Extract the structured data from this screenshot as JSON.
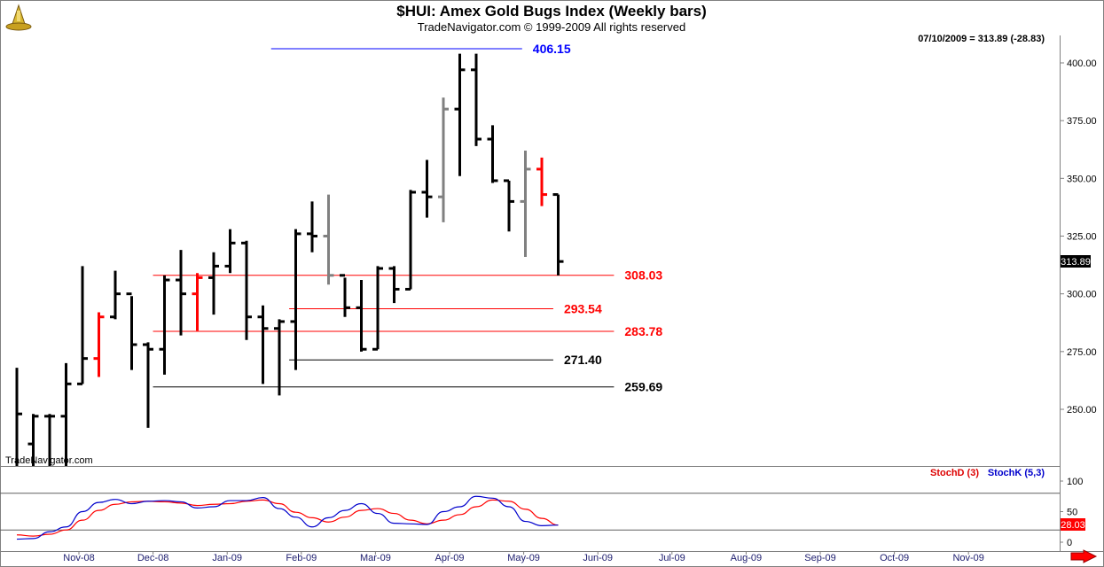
{
  "chart_data": {
    "type": "ohlc",
    "title": "$HUI:  Amex Gold Bugs Index  (Weekly bars)",
    "subtitle": "TradeNavigator.com © 1999-2009 All rights reserved",
    "header_readout": "07/10/2009 = 313.89 (-28.83)",
    "watermark": "TradeNavigator.com",
    "last_price": "313.89",
    "y_ticks": [
      "250.00",
      "275.00",
      "300.00",
      "325.00",
      "350.00",
      "375.00",
      "400.00"
    ],
    "ylim": [
      227,
      413
    ],
    "x_ticks": [
      "Nov-08",
      "Dec-08",
      "Jan-09",
      "Feb-09",
      "Mar-09",
      "Apr-09",
      "May-09",
      "Jun-09",
      "Jul-09",
      "Aug-09",
      "Sep-09",
      "Oct-09",
      "Nov-09"
    ],
    "bar_colors": {
      "normal": "#000000",
      "gray": "#808080",
      "red": "#ff0000"
    },
    "bars": [
      {
        "o": 221,
        "h": 268,
        "l": 218,
        "c": 248,
        "color": "normal"
      },
      {
        "o": 235,
        "h": 248,
        "l": 222,
        "c": 247,
        "color": "normal"
      },
      {
        "o": 247,
        "h": 248,
        "l": 222,
        "c": 247,
        "color": "normal"
      },
      {
        "o": 247,
        "h": 270,
        "l": 222,
        "c": 261,
        "color": "normal"
      },
      {
        "o": 261,
        "h": 312,
        "l": 261,
        "c": 272,
        "color": "normal"
      },
      {
        "o": 272,
        "h": 292,
        "l": 264,
        "c": 290,
        "color": "red"
      },
      {
        "o": 290,
        "h": 310,
        "l": 289,
        "c": 300,
        "color": "normal"
      },
      {
        "o": 300,
        "h": 299,
        "l": 267,
        "c": 278,
        "color": "normal"
      },
      {
        "o": 278,
        "h": 279,
        "l": 242,
        "c": 276,
        "color": "normal"
      },
      {
        "o": 276,
        "h": 308,
        "l": 265,
        "c": 306,
        "color": "normal"
      },
      {
        "o": 306,
        "h": 319,
        "l": 282,
        "c": 300,
        "color": "normal"
      },
      {
        "o": 300,
        "h": 309,
        "l": 284,
        "c": 307,
        "color": "red"
      },
      {
        "o": 307,
        "h": 318,
        "l": 291,
        "c": 312,
        "color": "normal"
      },
      {
        "o": 312,
        "h": 328,
        "l": 309,
        "c": 322,
        "color": "normal"
      },
      {
        "o": 322,
        "h": 323,
        "l": 280,
        "c": 290,
        "color": "normal"
      },
      {
        "o": 290,
        "h": 295,
        "l": 261,
        "c": 285,
        "color": "normal"
      },
      {
        "o": 285,
        "h": 289,
        "l": 256,
        "c": 288,
        "color": "normal"
      },
      {
        "o": 288,
        "h": 328,
        "l": 267,
        "c": 326,
        "color": "normal"
      },
      {
        "o": 326,
        "h": 340,
        "l": 318,
        "c": 325,
        "color": "normal"
      },
      {
        "o": 325,
        "h": 343,
        "l": 304,
        "c": 308,
        "color": "gray"
      },
      {
        "o": 308,
        "h": 307,
        "l": 290,
        "c": 294,
        "color": "normal"
      },
      {
        "o": 294,
        "h": 306,
        "l": 275,
        "c": 276,
        "color": "normal"
      },
      {
        "o": 276,
        "h": 312,
        "l": 276,
        "c": 311,
        "color": "normal"
      },
      {
        "o": 311,
        "h": 312,
        "l": 296,
        "c": 302,
        "color": "normal"
      },
      {
        "o": 302,
        "h": 345,
        "l": 302,
        "c": 344,
        "color": "normal"
      },
      {
        "o": 344,
        "h": 358,
        "l": 333,
        "c": 342,
        "color": "normal"
      },
      {
        "o": 342,
        "h": 385,
        "l": 331,
        "c": 380,
        "color": "gray"
      },
      {
        "o": 380,
        "h": 404,
        "l": 351,
        "c": 397,
        "color": "normal"
      },
      {
        "o": 397,
        "h": 404,
        "l": 364,
        "c": 367,
        "color": "normal"
      },
      {
        "o": 367,
        "h": 373,
        "l": 348,
        "c": 349,
        "color": "normal"
      },
      {
        "o": 349,
        "h": 349,
        "l": 327,
        "c": 340,
        "color": "normal"
      },
      {
        "o": 340,
        "h": 362,
        "l": 316,
        "c": 354,
        "color": "gray"
      },
      {
        "o": 354,
        "h": 359,
        "l": 338,
        "c": 343,
        "color": "red"
      },
      {
        "o": 343,
        "h": 343,
        "l": 308,
        "c": 314,
        "color": "normal"
      }
    ],
    "levels": [
      {
        "label": "406.15",
        "value": 406.15,
        "color": "#0000ff",
        "label_color": "#0000ff",
        "x_start_bar": 15.5,
        "x_end_bar": 30.8
      },
      {
        "label": "308.03",
        "value": 308.03,
        "color": "#ff0000",
        "label_color": "#ff0000",
        "x_start_bar": 8.3,
        "x_end_bar": 36.4
      },
      {
        "label": "293.54",
        "value": 293.54,
        "color": "#ff0000",
        "label_color": "#ff0000",
        "x_start_bar": 16.6,
        "x_end_bar": 32.7
      },
      {
        "label": "283.78",
        "value": 283.78,
        "color": "#ff0000",
        "label_color": "#ff0000",
        "x_start_bar": 8.3,
        "x_end_bar": 36.4
      },
      {
        "label": "271.40",
        "value": 271.4,
        "color": "#000000",
        "label_color": "#000000",
        "x_start_bar": 16.6,
        "x_end_bar": 32.7
      },
      {
        "label": "259.69",
        "value": 259.69,
        "color": "#000000",
        "label_color": "#000000",
        "x_start_bar": 8.3,
        "x_end_bar": 36.4
      }
    ],
    "stoch": {
      "legend_d": "StochD (3)",
      "legend_k": "StochK (5,3)",
      "color_d": "#ff0000",
      "color_k": "#0000cc",
      "y_ticks": [
        "100",
        "50",
        "0"
      ],
      "ylim": [
        -10,
        110
      ],
      "ref_lines": [
        80,
        20
      ],
      "last_value": "28.03",
      "k": [
        5,
        6,
        17,
        25,
        50,
        65,
        70,
        63,
        67,
        68,
        66,
        56,
        58,
        68,
        68,
        73,
        55,
        41,
        25,
        40,
        52,
        63,
        47,
        31,
        30,
        29,
        50,
        58,
        75,
        72,
        58,
        34,
        27,
        28
      ],
      "d": [
        12,
        10,
        13,
        20,
        36,
        52,
        62,
        66,
        67,
        66,
        64,
        60,
        62,
        63,
        67,
        69,
        63,
        49,
        40,
        33,
        41,
        52,
        55,
        47,
        36,
        30,
        36,
        45,
        58,
        69,
        67,
        54,
        39,
        28
      ]
    }
  }
}
